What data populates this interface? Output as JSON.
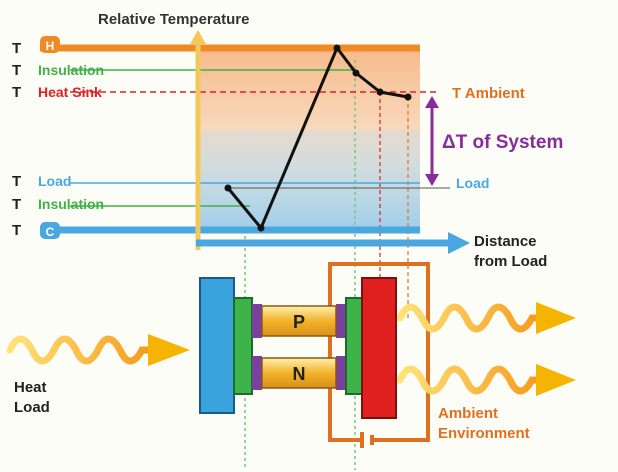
{
  "title": "Relative Temperature",
  "y_axis_labels": {
    "t_hot_prefix": "T",
    "t_hot_sub": "H",
    "t_insulation_top_prefix": "T",
    "t_insulation_top_label": "Insulation",
    "t_heat_sink_prefix": "T",
    "t_heat_sink_label": "Heat Sink",
    "t_load_prefix": "T",
    "t_load_label": "Load",
    "t_insulation_bottom_prefix": "T",
    "t_insulation_bottom_label": "Insulation",
    "t_cold_prefix": "T",
    "t_cold_sub": "C"
  },
  "annotations": {
    "t_ambient": "T Ambient",
    "delta_t_system": "ΔT of System",
    "load_right": "Load",
    "distance_line1": "Distance",
    "distance_line2": "from Load",
    "heat_load_line1": "Heat",
    "heat_load_line2": "Load",
    "ambient_line1": "Ambient",
    "ambient_line2": "Environment",
    "p_label": "P",
    "n_label": "N"
  },
  "colors": {
    "hot": "#f08a24",
    "cold": "#4aa8e0",
    "insulation": "#43b049",
    "heat_sink": "#e02020",
    "delta": "#8a2b9c",
    "ambient_text": "#e07020",
    "arrow_yellow": "#ffcc00",
    "pellet": "#f3b22a"
  }
}
